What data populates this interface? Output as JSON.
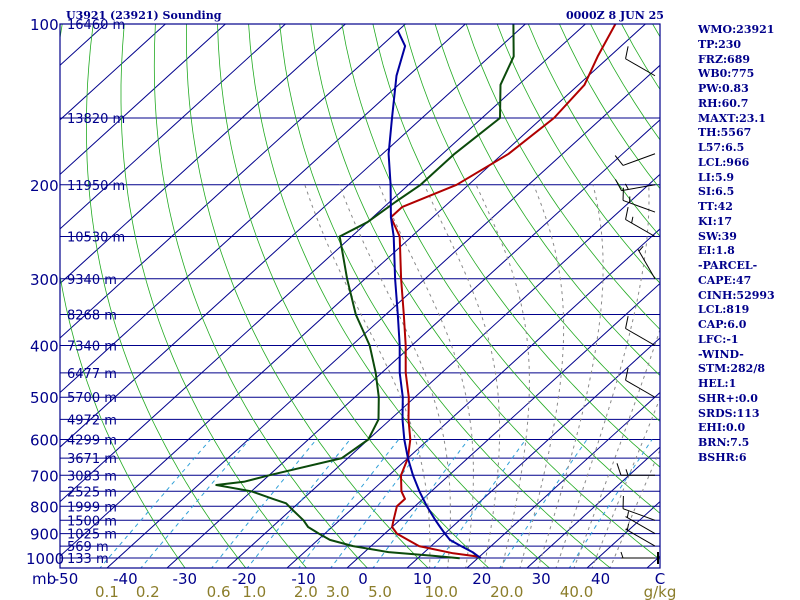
{
  "header": {
    "station": "U3921 (23921) Sounding",
    "datetime": "0000Z  8 JUN 25"
  },
  "chart_data": {
    "type": "line",
    "chart_kind": "skew-T log-P diagram",
    "p_axis": {
      "unit_label": "mb",
      "ticks": [
        100,
        200,
        300,
        400,
        500,
        600,
        700,
        800,
        900,
        1000
      ],
      "range": [
        100,
        1050
      ],
      "scale": "log"
    },
    "t_axis": {
      "ticks": [
        -50,
        -40,
        -30,
        -20,
        -10,
        0,
        10,
        20,
        30,
        40,
        "C"
      ],
      "range": [
        -50,
        50
      ]
    },
    "mixing_ratio": {
      "unit_label": "g/kg",
      "labels": [
        "0.1",
        "0.2",
        "0.6",
        "1.0",
        "2.0",
        "3.0",
        "5.0",
        "10.0",
        "20.0",
        "40.0"
      ],
      "values": [
        0.1,
        0.2,
        0.6,
        1.0,
        2.0,
        3.0,
        5.0,
        10.0,
        20.0,
        40.0
      ]
    },
    "heights": [
      {
        "label": "16460 m",
        "p": 100
      },
      {
        "label": "13820 m",
        "p": 150
      },
      {
        "label": "11950 m",
        "p": 200
      },
      {
        "label": "10530 m",
        "p": 250
      },
      {
        "label": "9340 m",
        "p": 300
      },
      {
        "label": "8268 m",
        "p": 350
      },
      {
        "label": "7340 m",
        "p": 400
      },
      {
        "label": "6477 m",
        "p": 450
      },
      {
        "label": "5700 m",
        "p": 500
      },
      {
        "label": "4972 m",
        "p": 550
      },
      {
        "label": "4299 m",
        "p": 600
      },
      {
        "label": "3671 m",
        "p": 650
      },
      {
        "label": "3083 m",
        "p": 700
      },
      {
        "label": "2525 m",
        "p": 750
      },
      {
        "label": "1999 m",
        "p": 800
      },
      {
        "label": "1500 m",
        "p": 850
      },
      {
        "label": "1025 m",
        "p": 900
      },
      {
        "label": "569 m",
        "p": 950
      },
      {
        "label": "133 m",
        "p": 1000
      }
    ],
    "series": [
      {
        "name": "Temperature",
        "color": "#b00000",
        "points": [
          [
            1001,
            20.5
          ],
          [
            995,
            20
          ],
          [
            980,
            15
          ],
          [
            950,
            8
          ],
          [
            925,
            5
          ],
          [
            900,
            2
          ],
          [
            875,
            0
          ],
          [
            850,
            -1
          ],
          [
            800,
            -3
          ],
          [
            775,
            -3
          ],
          [
            750,
            -5
          ],
          [
            700,
            -8
          ],
          [
            650,
            -10
          ],
          [
            600,
            -13
          ],
          [
            550,
            -17
          ],
          [
            500,
            -21
          ],
          [
            450,
            -26
          ],
          [
            400,
            -31
          ],
          [
            350,
            -37
          ],
          [
            300,
            -44
          ],
          [
            250,
            -52
          ],
          [
            230,
            -57
          ],
          [
            220,
            -57
          ],
          [
            200,
            -52
          ],
          [
            175,
            -49
          ],
          [
            150,
            -48
          ],
          [
            130,
            -49
          ],
          [
            115,
            -52
          ],
          [
            100,
            -55
          ]
        ]
      },
      {
        "name": "Dewpoint",
        "color": "#0b4a0b",
        "points": [
          [
            1001,
            17
          ],
          [
            990,
            12
          ],
          [
            975,
            4
          ],
          [
            950,
            -3
          ],
          [
            925,
            -8
          ],
          [
            900,
            -11
          ],
          [
            875,
            -14
          ],
          [
            850,
            -16
          ],
          [
            810,
            -20
          ],
          [
            790,
            -22
          ],
          [
            775,
            -25
          ],
          [
            750,
            -30
          ],
          [
            730,
            -37
          ],
          [
            720,
            -33
          ],
          [
            700,
            -30
          ],
          [
            650,
            -21
          ],
          [
            600,
            -20
          ],
          [
            550,
            -22
          ],
          [
            500,
            -26
          ],
          [
            450,
            -31
          ],
          [
            400,
            -37
          ],
          [
            350,
            -45
          ],
          [
            300,
            -53
          ],
          [
            250,
            -62
          ],
          [
            235,
            -60
          ],
          [
            215,
            -59
          ],
          [
            200,
            -58
          ],
          [
            175,
            -58
          ],
          [
            150,
            -57
          ],
          [
            130,
            -63
          ],
          [
            115,
            -66
          ],
          [
            100,
            -72
          ]
        ]
      },
      {
        "name": "Parcel",
        "color": "#0000a0",
        "points": [
          [
            1001,
            20.5
          ],
          [
            975,
            18
          ],
          [
            950,
            15
          ],
          [
            925,
            12
          ],
          [
            900,
            10
          ],
          [
            875,
            8
          ],
          [
            850,
            6
          ],
          [
            800,
            2
          ],
          [
            750,
            -2
          ],
          [
            700,
            -6
          ],
          [
            650,
            -10
          ],
          [
            600,
            -14
          ],
          [
            550,
            -18
          ],
          [
            500,
            -22
          ],
          [
            450,
            -27
          ],
          [
            400,
            -32
          ],
          [
            350,
            -38
          ],
          [
            300,
            -45
          ],
          [
            250,
            -53
          ],
          [
            230,
            -57
          ],
          [
            200,
            -63
          ],
          [
            175,
            -69
          ],
          [
            150,
            -75
          ],
          [
            125,
            -82
          ],
          [
            110,
            -86
          ],
          [
            103,
            -90
          ]
        ]
      }
    ],
    "wind_barbs": [
      {
        "p": 1000,
        "dir": 270,
        "kt": 5
      },
      {
        "p": 950,
        "dir": 300,
        "kt": 5
      },
      {
        "p": 900,
        "dir": 300,
        "kt": 5
      },
      {
        "p": 850,
        "dir": 290,
        "kt": 10
      },
      {
        "p": 700,
        "dir": 270,
        "kt": 15
      },
      {
        "p": 500,
        "dir": 300,
        "kt": 10
      },
      {
        "p": 400,
        "dir": 300,
        "kt": 10
      },
      {
        "p": 300,
        "dir": 330,
        "kt": 5
      },
      {
        "p": 250,
        "dir": 300,
        "kt": 15
      },
      {
        "p": 225,
        "dir": 290,
        "kt": 15
      },
      {
        "p": 200,
        "dir": 260,
        "kt": 15
      },
      {
        "p": 175,
        "dir": 250,
        "kt": 10
      },
      {
        "p": 125,
        "dir": 300,
        "kt": 10
      }
    ]
  },
  "indices": [
    "WMO:23921",
    "TP:230",
    "FRZ:689",
    "WB0:775",
    "PW:0.83",
    "RH:60.7",
    "MAXT:23.1",
    "TH:5567",
    "L57:6.5",
    "LCL:966",
    "LI:5.9",
    "SI:6.5",
    "TT:42",
    "KI:17",
    "SW:39",
    "EI:1.8",
    "-PARCEL-",
    "CAPE:47",
    "CINH:52993",
    "LCL:819",
    "CAP:6.0",
    "LFC:-1",
    "-WIND-",
    "STM:282/8",
    "HEL:1",
    "SHR+:0.0",
    "SRDS:113",
    "EHI:0.0",
    "BRN:7.5",
    "BSHR:6"
  ]
}
